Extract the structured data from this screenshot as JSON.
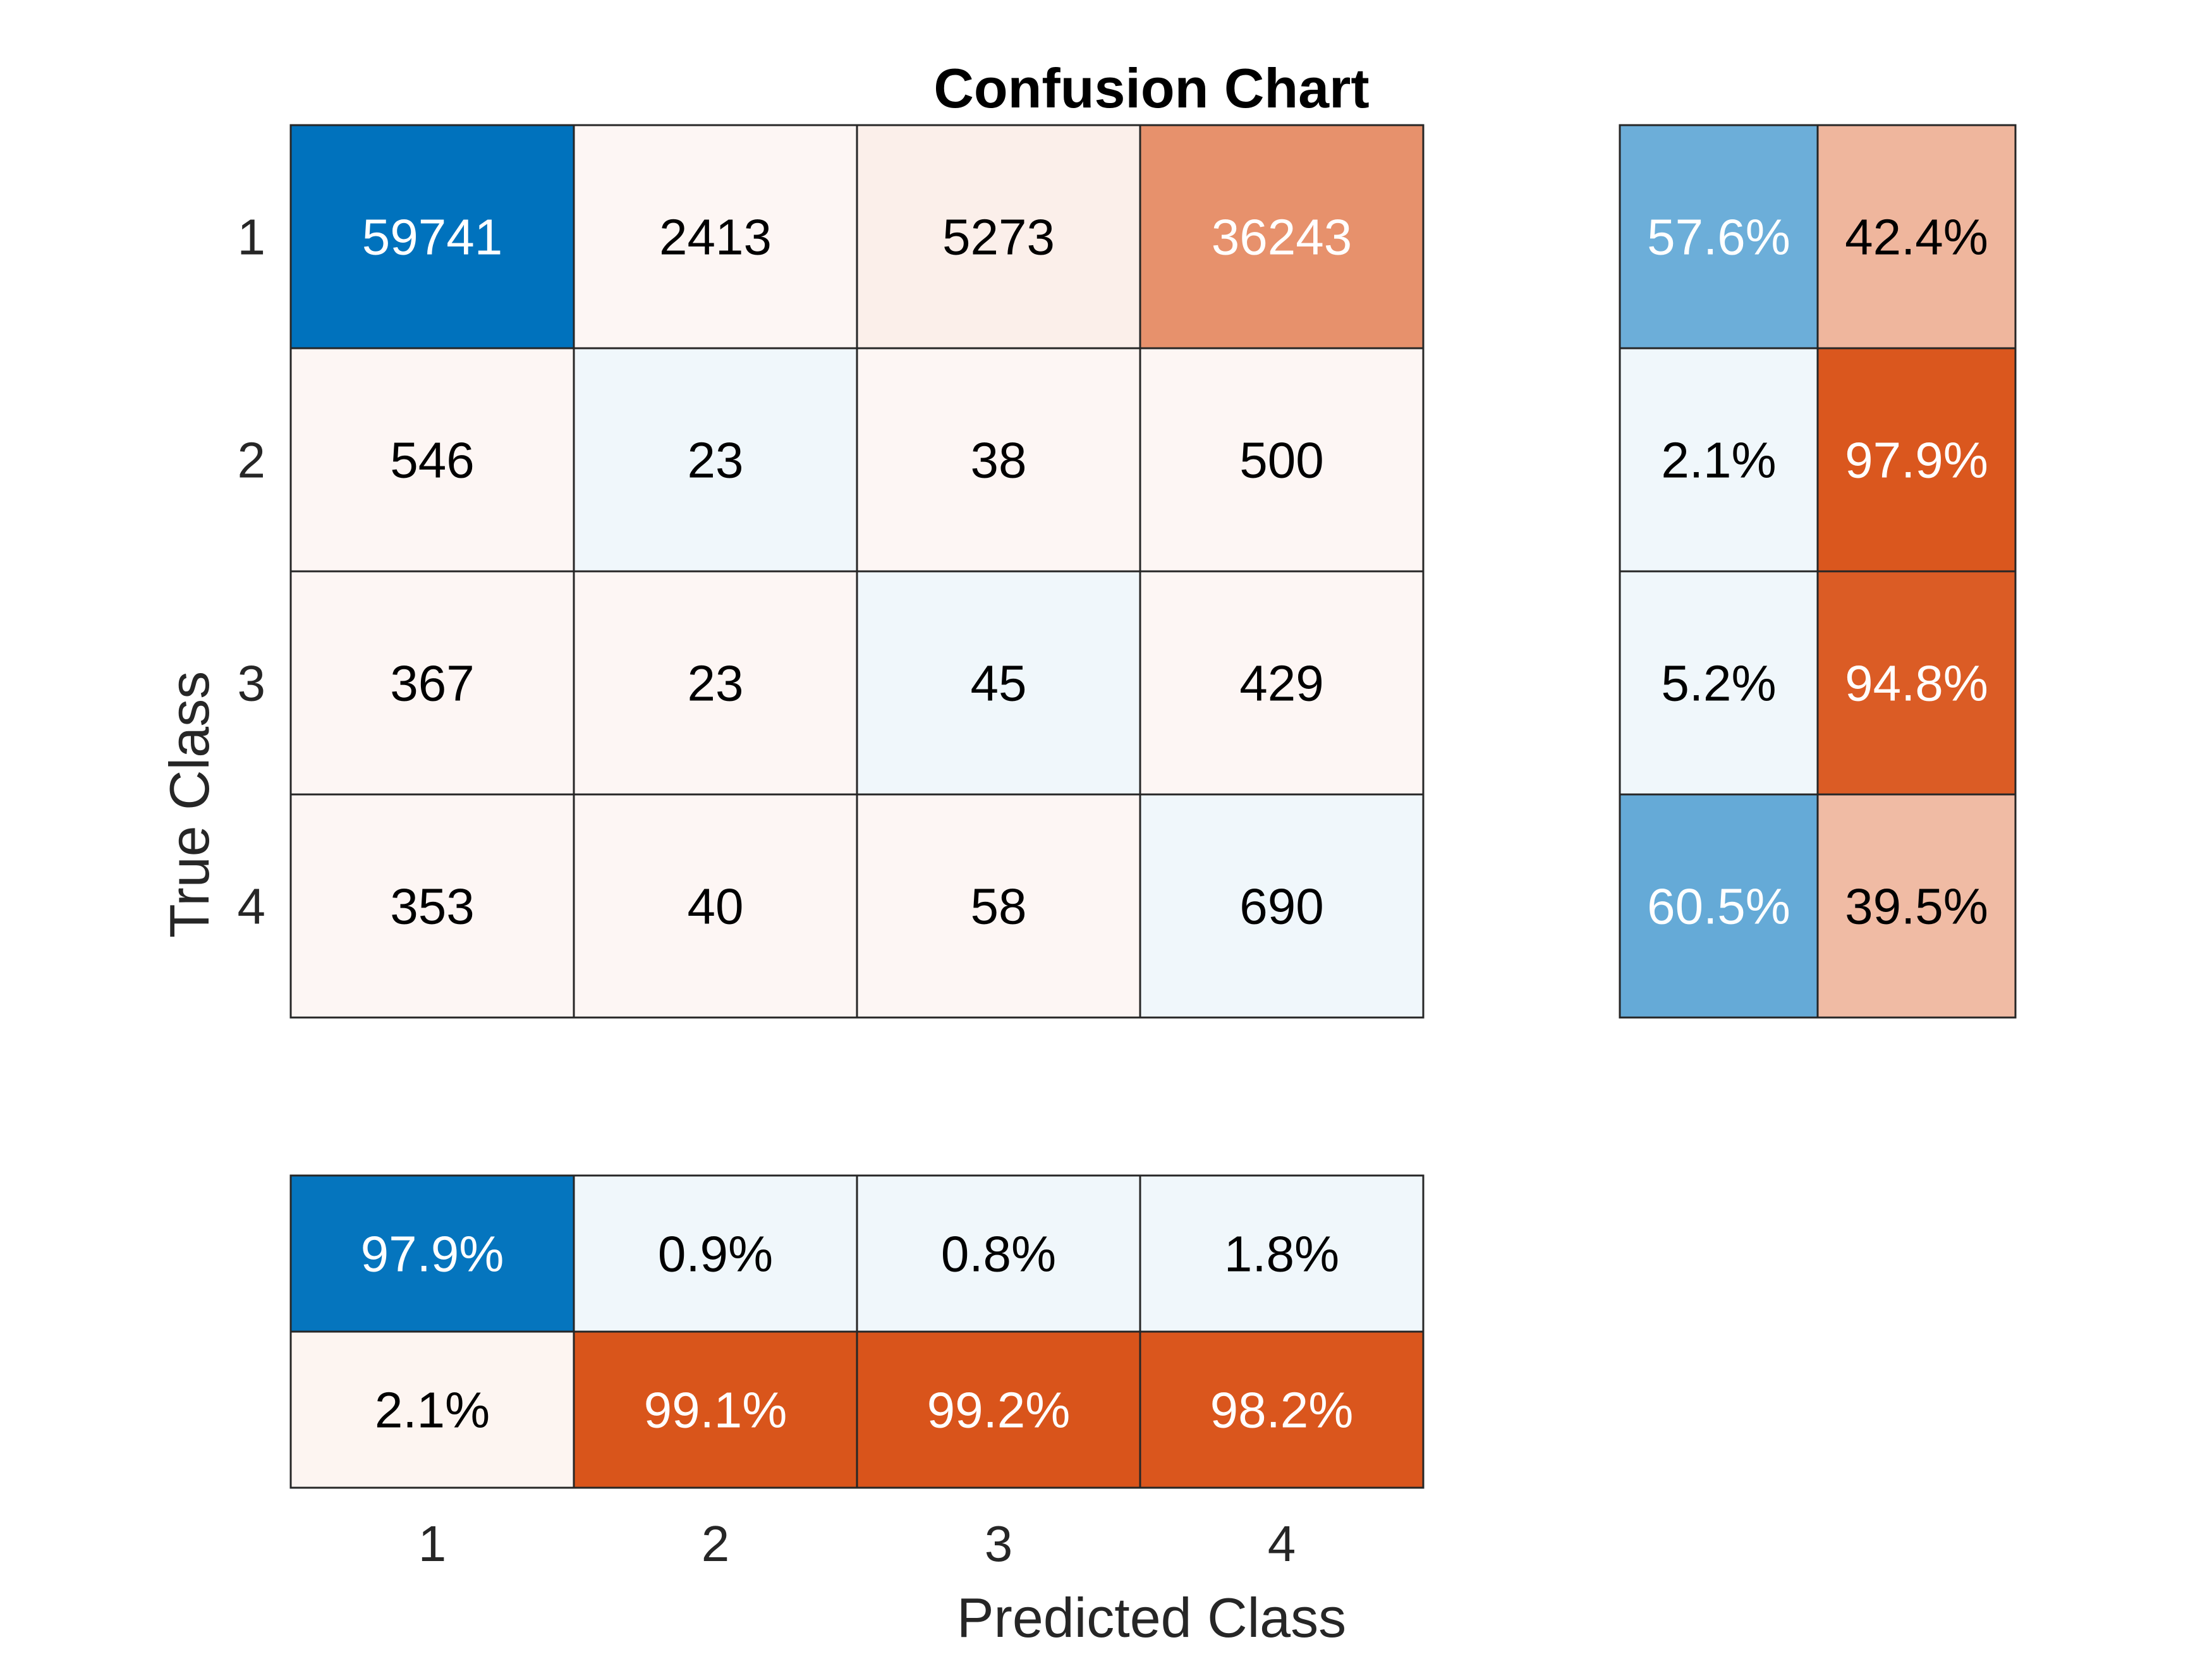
{
  "chart_data": {
    "type": "heatmap",
    "title": "Confusion Chart",
    "xlabel": "Predicted Class",
    "ylabel": "True Class",
    "classes": [
      "1",
      "2",
      "3",
      "4"
    ],
    "matrix": [
      [
        59741,
        2413,
        5273,
        36243
      ],
      [
        546,
        23,
        38,
        500
      ],
      [
        367,
        23,
        45,
        429
      ],
      [
        353,
        40,
        58,
        690
      ]
    ],
    "row_summary": {
      "correct": [
        "57.6%",
        "2.1%",
        "5.2%",
        "60.5%"
      ],
      "incorrect": [
        "42.4%",
        "97.9%",
        "94.8%",
        "39.5%"
      ]
    },
    "column_summary": {
      "correct": [
        "97.9%",
        "0.9%",
        "0.8%",
        "1.8%"
      ],
      "incorrect": [
        "2.1%",
        "99.1%",
        "99.2%",
        "98.2%"
      ]
    },
    "colors": {
      "correct": "#0072bd",
      "incorrect": "#d95319",
      "border": "#262626"
    }
  }
}
